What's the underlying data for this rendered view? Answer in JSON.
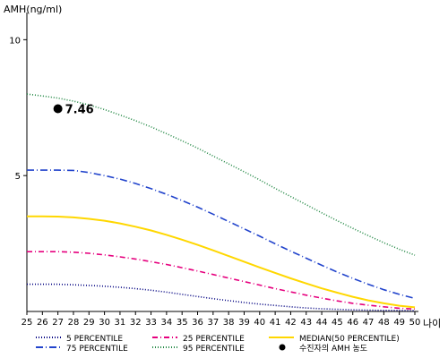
{
  "chart_data": {
    "type": "line",
    "ylabel": "AMH(ng/ml)",
    "xlabel": "나이",
    "x": [
      25,
      26,
      27,
      28,
      29,
      30,
      31,
      32,
      33,
      34,
      35,
      36,
      37,
      38,
      39,
      40,
      41,
      42,
      43,
      44,
      45,
      46,
      47,
      48,
      49,
      50
    ],
    "xlim": [
      25,
      50
    ],
    "ylim": [
      0,
      11
    ],
    "yticks": [
      5,
      10
    ],
    "grid": false,
    "legend_position": "bottom",
    "series": [
      {
        "name": "5 PERCENTILE",
        "color": "#000080",
        "dash": "1,2",
        "values": [
          1.0,
          1.0,
          1.0,
          0.98,
          0.96,
          0.93,
          0.89,
          0.84,
          0.78,
          0.71,
          0.63,
          0.55,
          0.47,
          0.4,
          0.33,
          0.27,
          0.22,
          0.17,
          0.13,
          0.1,
          0.08,
          0.06,
          0.05,
          0.04,
          0.04,
          0.03
        ]
      },
      {
        "name": "25 PERCENTILE",
        "color": "#e6007e",
        "dash": "6,3,1,3",
        "values": [
          2.2,
          2.2,
          2.2,
          2.18,
          2.14,
          2.08,
          2.01,
          1.93,
          1.83,
          1.73,
          1.61,
          1.49,
          1.36,
          1.23,
          1.1,
          0.97,
          0.84,
          0.72,
          0.6,
          0.49,
          0.39,
          0.3,
          0.23,
          0.17,
          0.12,
          0.09
        ]
      },
      {
        "name": "MEDIAN(50 PERCENTILE)",
        "color": "#ffd700",
        "dash": "",
        "values": [
          3.5,
          3.5,
          3.49,
          3.46,
          3.41,
          3.34,
          3.24,
          3.12,
          2.98,
          2.82,
          2.64,
          2.45,
          2.25,
          2.04,
          1.83,
          1.62,
          1.42,
          1.22,
          1.03,
          0.85,
          0.69,
          0.54,
          0.41,
          0.3,
          0.21,
          0.15
        ]
      },
      {
        "name": "75 PERCENTILE",
        "color": "#2244cc",
        "dash": "8,3,1,3",
        "values": [
          5.2,
          5.2,
          5.2,
          5.19,
          5.11,
          5.0,
          4.87,
          4.71,
          4.52,
          4.31,
          4.08,
          3.84,
          3.58,
          3.31,
          3.04,
          2.77,
          2.49,
          2.22,
          1.96,
          1.7,
          1.45,
          1.22,
          1.0,
          0.8,
          0.63,
          0.48
        ]
      },
      {
        "name": "95 PERCENTILE",
        "color": "#228844",
        "dash": "1,2",
        "values": [
          8.0,
          7.93,
          7.85,
          7.74,
          7.6,
          7.43,
          7.23,
          7.02,
          6.79,
          6.54,
          6.28,
          6.01,
          5.72,
          5.43,
          5.14,
          4.84,
          4.53,
          4.23,
          3.93,
          3.63,
          3.34,
          3.06,
          2.79,
          2.53,
          2.29,
          2.07
        ]
      }
    ],
    "point": {
      "name": "수진자의 AMH 농도",
      "x": 27,
      "y": 7.46,
      "label": "7.46",
      "color": "#000000"
    }
  }
}
